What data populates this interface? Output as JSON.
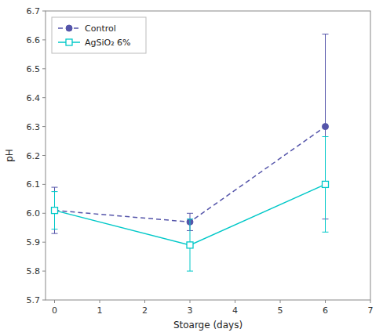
{
  "chart_data": {
    "type": "line",
    "x_label": "Stoarge (days)",
    "y_label": "pH",
    "x": [
      0,
      3,
      6
    ],
    "series": [
      {
        "name": "Control",
        "color": "#5555aa",
        "marker": "circle",
        "line_style": "dashed",
        "values": [
          6.01,
          5.97,
          6.3
        ],
        "errors": [
          0.08,
          0.03,
          0.32
        ]
      },
      {
        "name": "AgSiO₂ 6%",
        "color": "#00c8c8",
        "marker": "square",
        "line_style": "solid",
        "values": [
          6.01,
          5.89,
          6.1
        ],
        "errors": [
          0.065,
          0.09,
          0.165
        ]
      }
    ],
    "xlim": [
      -0.2,
      7
    ],
    "xticks": [
      0,
      1,
      2,
      3,
      4,
      5,
      6,
      7
    ],
    "ylim": [
      5.7,
      6.7
    ],
    "yticks": [
      5.7,
      5.8,
      5.9,
      {
        "value": 6,
        "label": "6.0"
      },
      6.1,
      6.2,
      6.3,
      6.4,
      6.5,
      6.6,
      6.7
    ],
    "grid": false,
    "legend": "upper left"
  }
}
